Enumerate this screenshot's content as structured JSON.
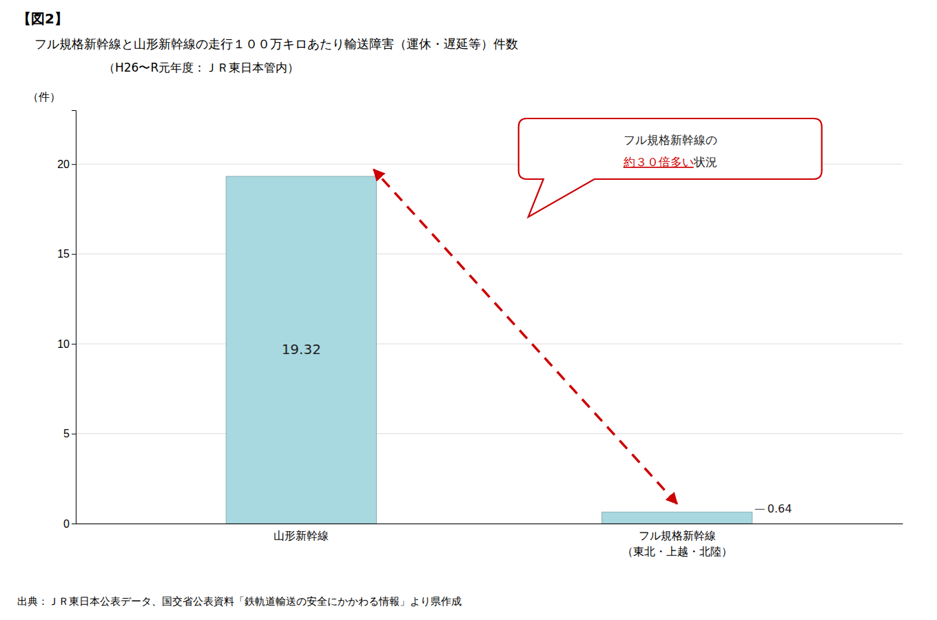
{
  "chart_data": {
    "type": "bar",
    "title": "【図2】",
    "subtitle": [
      "フル規格新幹線と山形新幹線の走行１００万キロあたり輸送障害（運休・遅延等）件数",
      "（H26〜R元年度：ＪＲ東日本管内）"
    ],
    "ylabel": "（件）",
    "categories": [
      "山形新幹線",
      "フル規格新幹線\n（東北・上越・北陸）"
    ],
    "values": [
      19.32,
      0.64
    ],
    "color": "#a8d8e0",
    "ylim": [
      0,
      23
    ],
    "yticks": [
      0,
      5,
      10,
      15,
      20
    ],
    "grid": true,
    "data_labels": true,
    "annotations": [
      "フル規格新幹線の",
      "約３０倍多い",
      "状況"
    ],
    "source": "出典：ＪＲ東日本公表データ、国交省公表資料「鉄軌道輸送の安全にかかわる情報」より県作成"
  }
}
